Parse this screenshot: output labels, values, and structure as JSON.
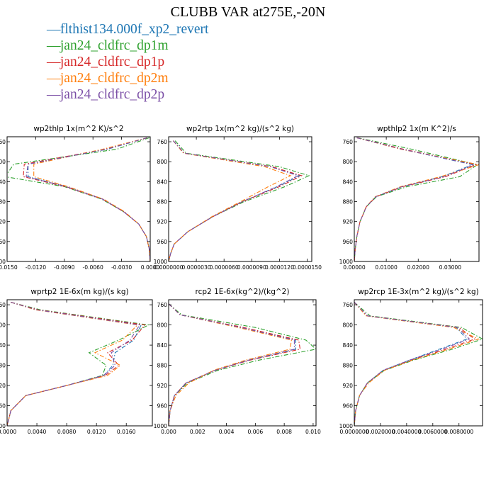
{
  "title": "CLUBB VAR at275E,-20N",
  "legend": [
    {
      "label": "flthist134.000f_xp2_revert",
      "color": "#1f77b4"
    },
    {
      "label": "jan24_cldfrc_dp1m",
      "color": "#2ca02c"
    },
    {
      "label": "jan24_cldfrc_dp1p",
      "color": "#d62728"
    },
    {
      "label": "jan24_cldfrc_dp2m",
      "color": "#ff7f0e"
    },
    {
      "label": "jan24_cldfrc_dp2p",
      "color": "#7b4fa6"
    }
  ],
  "chart_data": [
    {
      "type": "line",
      "title": "wp2thlp   1x(m^2 K)/s^2",
      "xlim": [
        -0.015,
        0.0
      ],
      "ylim": [
        1000,
        750
      ],
      "xticks": [
        "-0.0150",
        "-0.0120",
        "-0.0090",
        "-0.0060",
        "-0.0030",
        "0.0000"
      ],
      "xtick_values": [
        -0.015,
        -0.012,
        -0.009,
        -0.006,
        -0.003,
        0.0
      ],
      "yticks": [
        "760",
        "800",
        "840",
        "880",
        "920",
        "960",
        "1000"
      ],
      "y": [
        752,
        775,
        805,
        830,
        850,
        875,
        900,
        925,
        950,
        975,
        1000
      ],
      "series": [
        {
          "name": "flthist134.000f_xp2_revert",
          "color": "#1f77b4",
          "values": [
            -0.0003,
            -0.0045,
            -0.0128,
            -0.0128,
            -0.0088,
            -0.005,
            -0.0028,
            -0.0012,
            -0.0004,
            -0.0001,
            0.0
          ]
        },
        {
          "name": "jan24_cldfrc_dp1m",
          "color": "#2ca02c",
          "values": [
            -0.0001,
            -0.0035,
            -0.0143,
            -0.0152,
            -0.009,
            -0.0051,
            -0.0028,
            -0.0012,
            -0.0004,
            -0.0001,
            0.0
          ]
        },
        {
          "name": "jan24_cldfrc_dp1p",
          "color": "#d62728",
          "values": [
            -0.0003,
            -0.0047,
            -0.0132,
            -0.0133,
            -0.0089,
            -0.005,
            -0.0028,
            -0.0012,
            -0.0004,
            -0.0001,
            0.0
          ]
        },
        {
          "name": "jan24_cldfrc_dp2m",
          "color": "#ff7f0e",
          "values": [
            -0.0003,
            -0.005,
            -0.0122,
            -0.0122,
            -0.0086,
            -0.0049,
            -0.0027,
            -0.0012,
            -0.0004,
            -0.0001,
            0.0
          ]
        },
        {
          "name": "jan24_cldfrc_dp2p",
          "color": "#7b4fa6",
          "values": [
            -0.0003,
            -0.0046,
            -0.0128,
            -0.013,
            -0.0088,
            -0.005,
            -0.0028,
            -0.0012,
            -0.0004,
            -0.0001,
            0.0
          ]
        }
      ]
    },
    {
      "type": "line",
      "title": "wp2rtp   1x(m^2 kg)/(s^2 kg)",
      "xlim": [
        0.0,
        1.55e-05
      ],
      "ylim": [
        1000,
        750
      ],
      "xticks": [
        "0.0000000",
        "0.0000030",
        "0.0000060",
        "0.0000090",
        "0.0000120",
        "0.0000150"
      ],
      "xtick_values": [
        0.0,
        3e-06,
        6e-06,
        9e-06,
        1.2e-05,
        1.5e-05
      ],
      "yticks": [
        "760",
        "800",
        "840",
        "880",
        "920",
        "960",
        "1000"
      ],
      "y": [
        758,
        783,
        810,
        828,
        850,
        880,
        910,
        940,
        965,
        985,
        1000
      ],
      "series": [
        {
          "name": "flthist134.000f_xp2_revert",
          "color": "#1f77b4",
          "values": [
            5e-07,
            1.7e-06,
            1.1e-05,
            1.42e-05,
            1.18e-05,
            8e-06,
            4.8e-06,
            2.1e-06,
            6e-07,
            2e-07,
            0.0
          ]
        },
        {
          "name": "jan24_cldfrc_dp1m",
          "color": "#2ca02c",
          "values": [
            7e-07,
            1.9e-06,
            1.2e-05,
            1.52e-05,
            1.26e-05,
            8.2e-06,
            4.8e-06,
            2.1e-06,
            6e-07,
            2e-07,
            0.0
          ]
        },
        {
          "name": "jan24_cldfrc_dp1p",
          "color": "#d62728",
          "values": [
            5e-07,
            1.7e-06,
            1.12e-05,
            1.44e-05,
            1.2e-05,
            8e-06,
            4.8e-06,
            2.1e-06,
            6e-07,
            2e-07,
            0.0
          ]
        },
        {
          "name": "jan24_cldfrc_dp2m",
          "color": "#ff7f0e",
          "values": [
            5e-07,
            1.6e-06,
            1.04e-05,
            1.32e-05,
            1.08e-05,
            7.8e-06,
            4.7e-06,
            2.1e-06,
            6e-07,
            2e-07,
            0.0
          ]
        },
        {
          "name": "jan24_cldfrc_dp2p",
          "color": "#7b4fa6",
          "values": [
            5e-07,
            1.7e-06,
            1.1e-05,
            1.4e-05,
            1.17e-05,
            8e-06,
            4.8e-06,
            2.1e-06,
            6e-07,
            2e-07,
            0.0
          ]
        }
      ]
    },
    {
      "type": "line",
      "title": "wpthlp2   1x(m K^2)/s",
      "xlim": [
        0.0,
        0.039
      ],
      "ylim": [
        1000,
        750
      ],
      "xticks": [
        "0.00000",
        "0.01000",
        "0.02000",
        "0.03000"
      ],
      "xtick_values": [
        0.0,
        0.01,
        0.02,
        0.03
      ],
      "yticks": [
        "760",
        "800",
        "840",
        "880",
        "920",
        "960",
        "1000"
      ],
      "y": [
        752,
        775,
        806,
        830,
        850,
        870,
        890,
        920,
        950,
        975,
        1000
      ],
      "series": [
        {
          "name": "flthist134.000f_xp2_revert",
          "color": "#1f77b4",
          "values": [
            0.0008,
            0.015,
            0.037,
            0.0275,
            0.015,
            0.0068,
            0.0038,
            0.0018,
            0.0008,
            0.0003,
            0.0
          ]
        },
        {
          "name": "jan24_cldfrc_dp1m",
          "color": "#2ca02c",
          "values": [
            0.001,
            0.018,
            0.0385,
            0.033,
            0.0165,
            0.007,
            0.0038,
            0.0018,
            0.0008,
            0.0003,
            0.0
          ]
        },
        {
          "name": "jan24_cldfrc_dp1p",
          "color": "#d62728",
          "values": [
            0.0008,
            0.0155,
            0.038,
            0.0285,
            0.0152,
            0.0068,
            0.0038,
            0.0018,
            0.0008,
            0.0003,
            0.0
          ]
        },
        {
          "name": "jan24_cldfrc_dp2m",
          "color": "#ff7f0e",
          "values": [
            0.0008,
            0.0145,
            0.039,
            0.027,
            0.0145,
            0.0066,
            0.0037,
            0.0018,
            0.0008,
            0.0003,
            0.0
          ]
        },
        {
          "name": "jan24_cldfrc_dp2p",
          "color": "#7b4fa6",
          "values": [
            0.0008,
            0.015,
            0.0375,
            0.028,
            0.015,
            0.0068,
            0.0038,
            0.0018,
            0.0008,
            0.0003,
            0.0
          ]
        }
      ]
    },
    {
      "type": "line",
      "title": "wprtp2   1E-6x(m kg)/(s kg)",
      "xlim": [
        0.0,
        0.0195
      ],
      "ylim": [
        1000,
        750
      ],
      "xticks": [
        "0.0000",
        "0.0040",
        "0.0080",
        "0.0120",
        "0.0160"
      ],
      "xtick_values": [
        0.0,
        0.004,
        0.008,
        0.012,
        0.016
      ],
      "yticks": [
        "760",
        "800",
        "840",
        "880",
        "920",
        "960",
        "1000"
      ],
      "y": [
        755,
        770,
        800,
        830,
        855,
        880,
        900,
        920,
        940,
        970,
        1000
      ],
      "series": [
        {
          "name": "flthist134.000f_xp2_revert",
          "color": "#1f77b4",
          "values": [
            0.0005,
            0.004,
            0.018,
            0.017,
            0.0145,
            0.0142,
            0.013,
            0.008,
            0.0025,
            0.0005,
            0.0
          ]
        },
        {
          "name": "jan24_cldfrc_dp1m",
          "color": "#2ca02c",
          "values": [
            0.0005,
            0.0045,
            0.019,
            0.015,
            0.011,
            0.0133,
            0.0128,
            0.008,
            0.0025,
            0.0005,
            0.0
          ]
        },
        {
          "name": "jan24_cldfrc_dp1p",
          "color": "#d62728",
          "values": [
            0.0005,
            0.0042,
            0.0185,
            0.0168,
            0.0135,
            0.015,
            0.0132,
            0.008,
            0.0025,
            0.0005,
            0.0
          ]
        },
        {
          "name": "jan24_cldfrc_dp2m",
          "color": "#ff7f0e",
          "values": [
            0.0005,
            0.0038,
            0.0175,
            0.0155,
            0.0118,
            0.0152,
            0.0135,
            0.008,
            0.0025,
            0.0005,
            0.0
          ]
        },
        {
          "name": "jan24_cldfrc_dp2p",
          "color": "#7b4fa6",
          "values": [
            0.0005,
            0.004,
            0.0178,
            0.0165,
            0.014,
            0.0145,
            0.013,
            0.008,
            0.0025,
            0.0005,
            0.0
          ]
        }
      ]
    },
    {
      "type": "line",
      "title": "rcp2   1E-6x(kg^2)/(kg^2)",
      "xlim": [
        0.0,
        0.0102
      ],
      "ylim": [
        1000,
        750
      ],
      "xticks": [
        "0.000",
        "0.002",
        "0.004",
        "0.006",
        "0.008",
        "0.010"
      ],
      "xtick_values": [
        0.0,
        0.002,
        0.004,
        0.006,
        0.008,
        0.01
      ],
      "yticks": [
        "760",
        "800",
        "840",
        "880",
        "920",
        "960",
        "1000"
      ],
      "y": [
        758,
        780,
        805,
        830,
        848,
        870,
        890,
        915,
        940,
        970,
        1000
      ],
      "series": [
        {
          "name": "flthist134.000f_xp2_revert",
          "color": "#1f77b4",
          "values": [
            0.0,
            0.0008,
            0.005,
            0.0088,
            0.0088,
            0.0055,
            0.0032,
            0.0012,
            0.0004,
            0.0001,
            0.0
          ]
        },
        {
          "name": "jan24_cldfrc_dp1m",
          "color": "#2ca02c",
          "values": [
            0.0,
            0.0009,
            0.006,
            0.0095,
            0.0102,
            0.0062,
            0.0034,
            0.0013,
            0.0004,
            0.0001,
            0.0
          ]
        },
        {
          "name": "jan24_cldfrc_dp1p",
          "color": "#d62728",
          "values": [
            0.0,
            0.0008,
            0.0052,
            0.009,
            0.0091,
            0.0056,
            0.0032,
            0.0012,
            0.0004,
            0.0001,
            0.0
          ]
        },
        {
          "name": "jan24_cldfrc_dp2m",
          "color": "#ff7f0e",
          "values": [
            0.0,
            0.0008,
            0.0048,
            0.0085,
            0.0084,
            0.0053,
            0.0031,
            0.0014,
            0.0005,
            0.0001,
            0.0
          ]
        },
        {
          "name": "jan24_cldfrc_dp2p",
          "color": "#7b4fa6",
          "values": [
            0.0,
            0.0008,
            0.005,
            0.0087,
            0.0087,
            0.0055,
            0.0032,
            0.0012,
            0.0004,
            0.0001,
            0.0
          ]
        }
      ]
    },
    {
      "type": "line",
      "title": "wp2rcp   1E-3x(m^2 kg)/(s^2 kg)",
      "xlim": [
        0.0,
        0.0098
      ],
      "ylim": [
        1000,
        750
      ],
      "xticks": [
        "0.0000000",
        "0.0020000",
        "0.0040000",
        "0.0060000",
        "0.0080000"
      ],
      "xtick_values": [
        0.0,
        0.002,
        0.004,
        0.006,
        0.008
      ],
      "yticks": [
        "760",
        "800",
        "840",
        "880",
        "920",
        "960",
        "1000"
      ],
      "y": [
        755,
        782,
        805,
        828,
        848,
        870,
        890,
        915,
        940,
        970,
        1000
      ],
      "series": [
        {
          "name": "flthist134.000f_xp2_revert",
          "color": "#1f77b4",
          "values": [
            0.0,
            0.001,
            0.0078,
            0.0086,
            0.0065,
            0.0042,
            0.0022,
            0.001,
            0.0004,
            0.0001,
            0.0
          ]
        },
        {
          "name": "jan24_cldfrc_dp1m",
          "color": "#2ca02c",
          "values": [
            0.0,
            0.0012,
            0.0082,
            0.0098,
            0.0075,
            0.0045,
            0.0023,
            0.001,
            0.0004,
            0.0001,
            0.0
          ]
        },
        {
          "name": "jan24_cldfrc_dp1p",
          "color": "#d62728",
          "values": [
            0.0,
            0.001,
            0.008,
            0.0092,
            0.007,
            0.0043,
            0.0022,
            0.001,
            0.0004,
            0.0001,
            0.0
          ]
        },
        {
          "name": "jan24_cldfrc_dp2m",
          "color": "#ff7f0e",
          "values": [
            0.0,
            0.0009,
            0.0076,
            0.0095,
            0.0072,
            0.0044,
            0.0023,
            0.0011,
            0.0004,
            0.0001,
            0.0
          ]
        },
        {
          "name": "jan24_cldfrc_dp2p",
          "color": "#7b4fa6",
          "values": [
            0.0,
            0.001,
            0.0079,
            0.0088,
            0.0067,
            0.0042,
            0.0022,
            0.001,
            0.0004,
            0.0001,
            0.0
          ]
        }
      ]
    }
  ]
}
